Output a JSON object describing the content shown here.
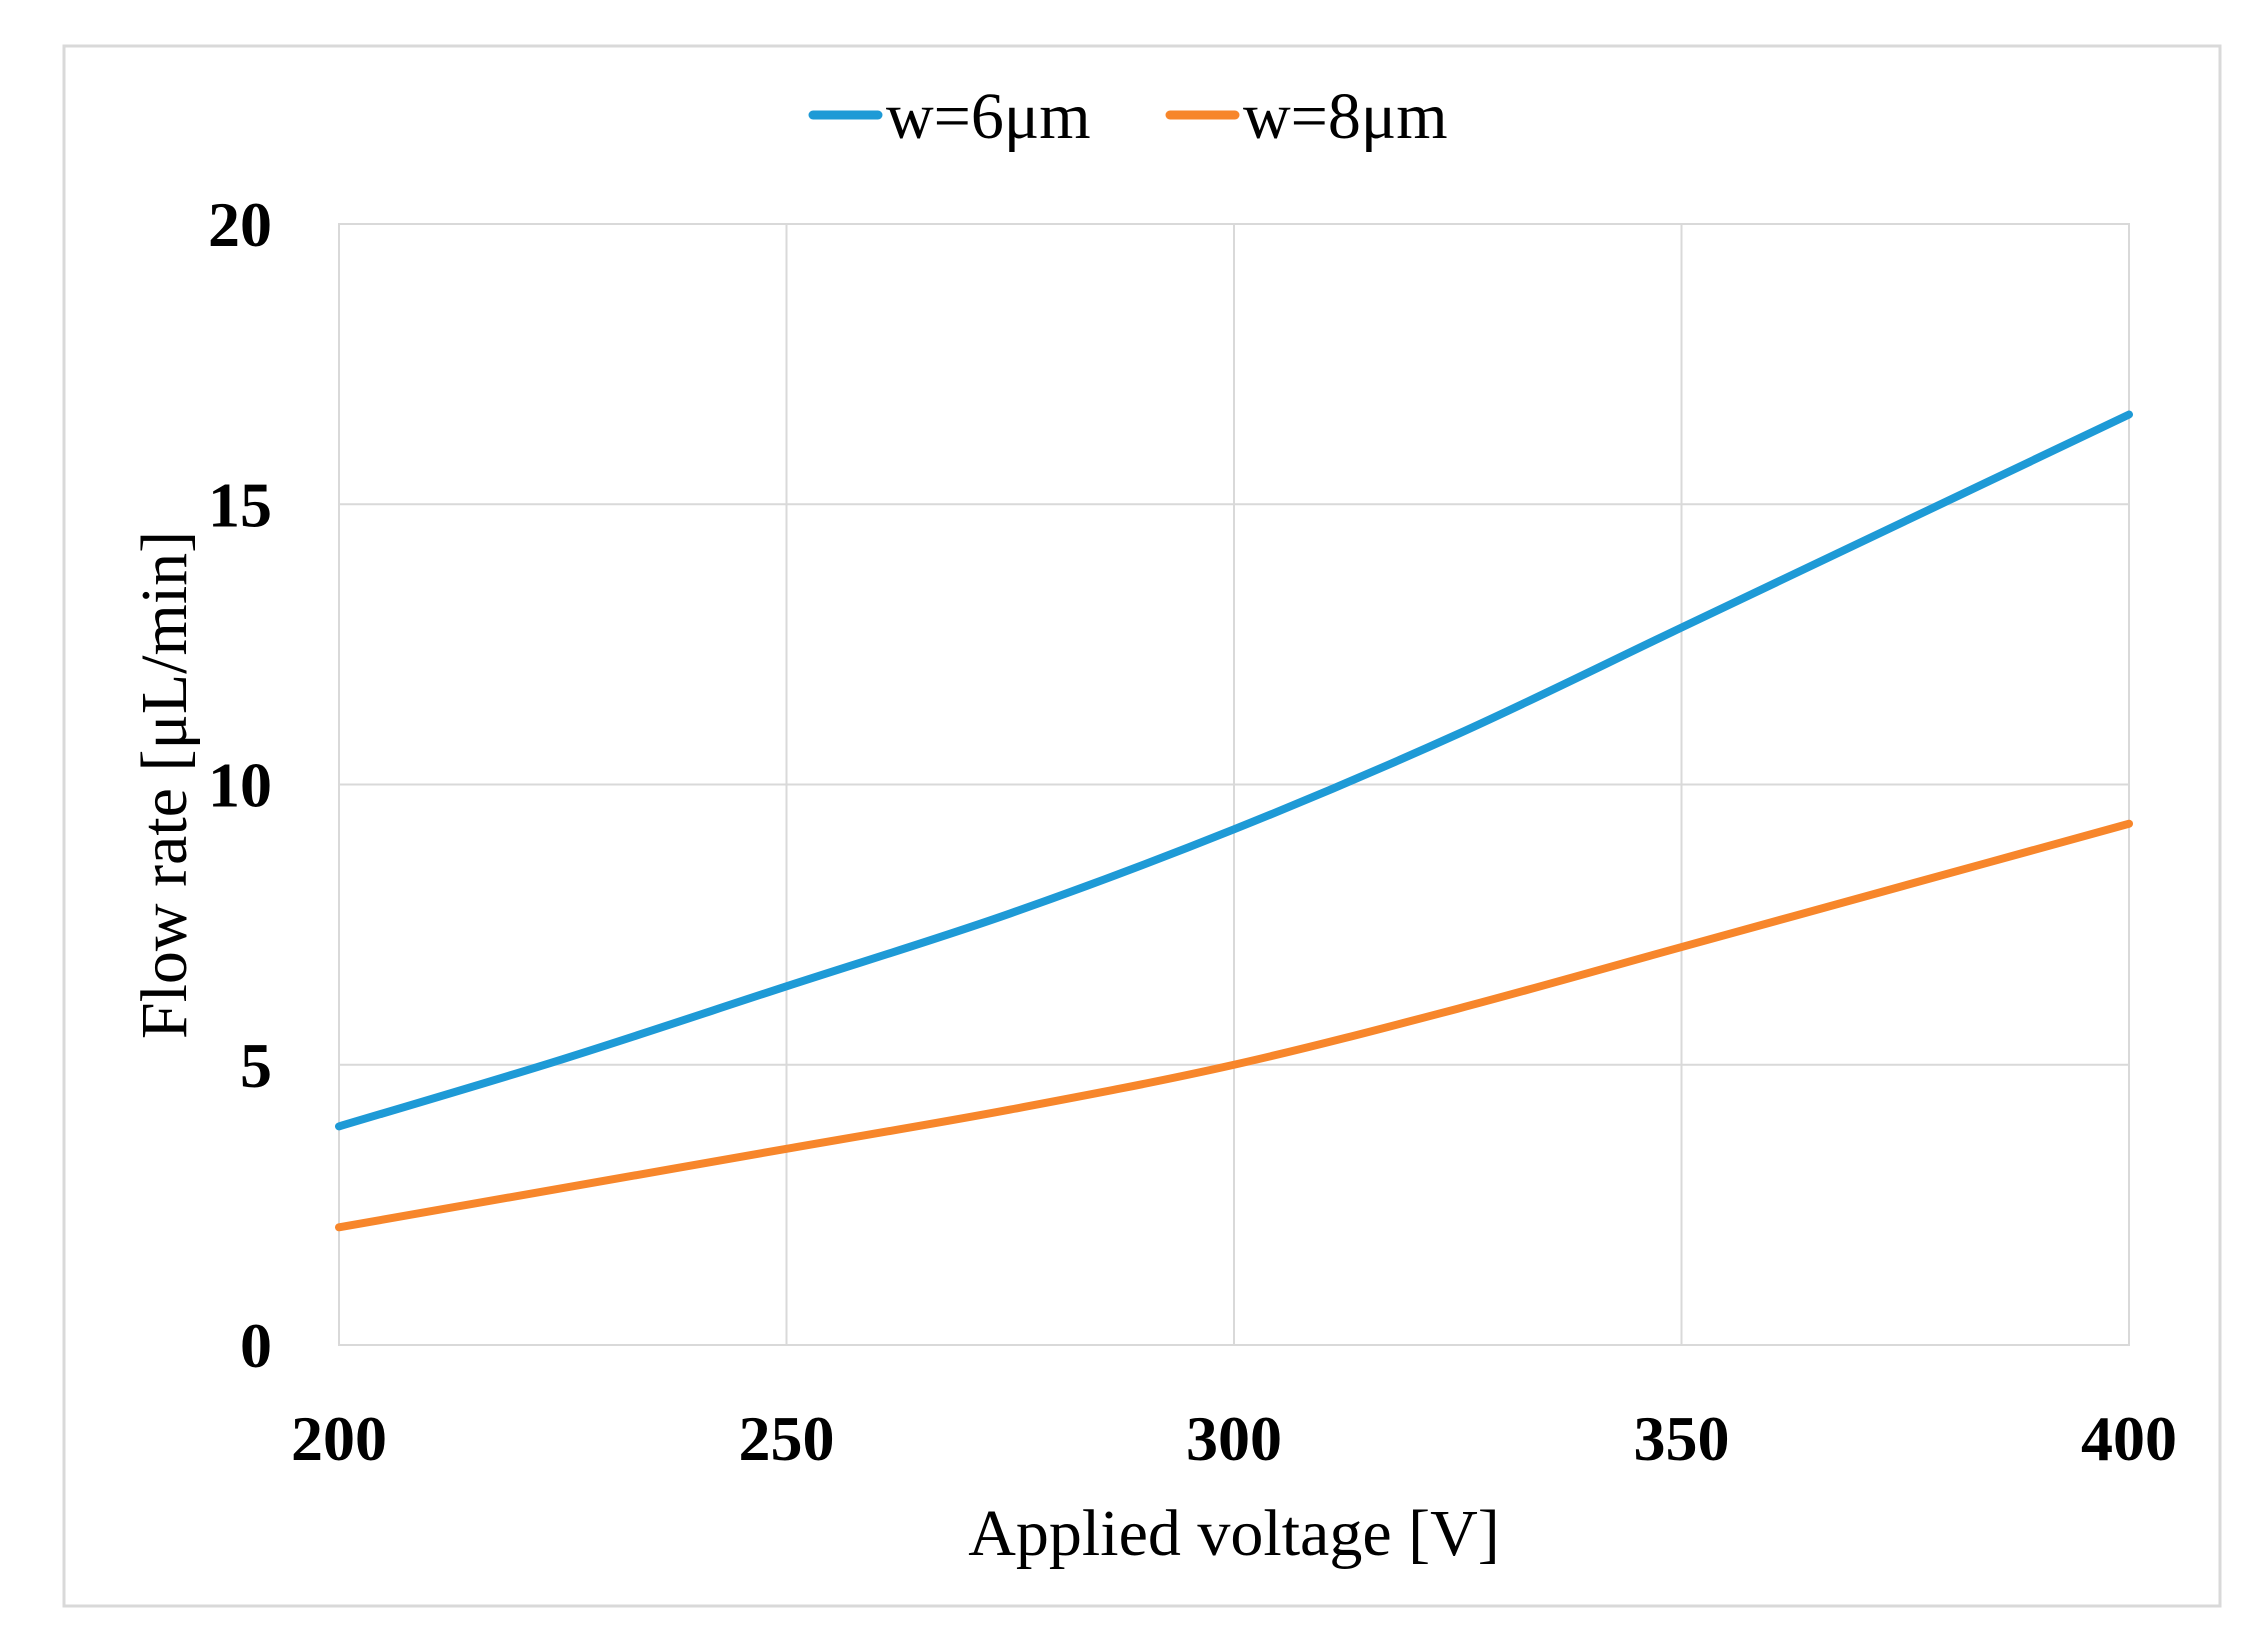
{
  "chart_data": {
    "type": "line",
    "title": "",
    "xlabel": "Applied voltage [V]",
    "ylabel": "Flow rate [μL/min]",
    "xlim": [
      200,
      400
    ],
    "ylim": [
      0,
      20
    ],
    "x_ticks": [
      "200",
      "250",
      "300",
      "350",
      "400"
    ],
    "y_ticks": [
      "0",
      "5",
      "10",
      "15",
      "20"
    ],
    "grid": true,
    "legend_position": "top-center",
    "x": [
      200,
      225,
      250,
      275,
      300,
      325,
      350,
      375,
      400
    ],
    "series": [
      {
        "name": "w=6μm",
        "color": "#1E9AD6",
        "values": [
          3.9,
          5.1,
          6.4,
          7.7,
          9.2,
          10.9,
          12.8,
          14.7,
          16.6
        ]
      },
      {
        "name": "w=8μm",
        "color": "#F7862B",
        "values": [
          2.1,
          2.8,
          3.5,
          4.2,
          5.0,
          6.0,
          7.1,
          8.2,
          9.3
        ]
      }
    ]
  }
}
